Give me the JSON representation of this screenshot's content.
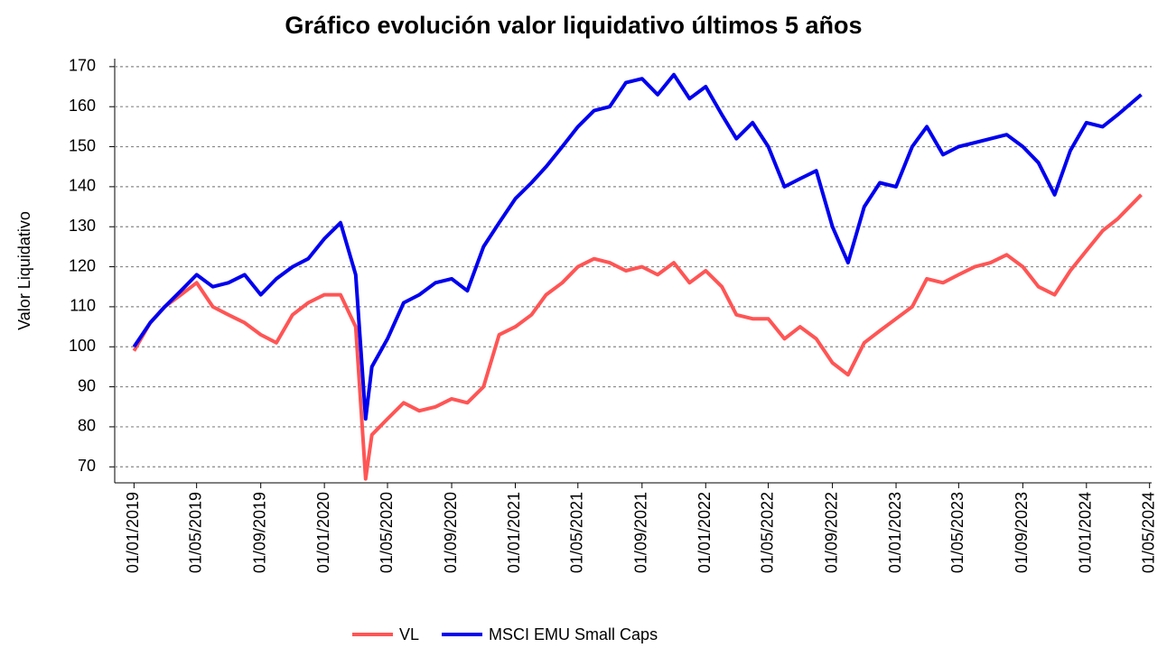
{
  "chart_data": {
    "type": "line",
    "title": "Gráfico evolución valor liquidativo últimos 5 años",
    "y_label": "Valor Liquidativo",
    "x": [
      "01/01/2019",
      "01/02/2019",
      "01/03/2019",
      "01/04/2019",
      "01/05/2019",
      "01/06/2019",
      "01/07/2019",
      "01/08/2019",
      "01/09/2019",
      "01/10/2019",
      "01/11/2019",
      "01/12/2019",
      "01/01/2020",
      "01/02/2020",
      "01/03/2020",
      "20/03/2020",
      "01/04/2020",
      "01/05/2020",
      "01/06/2020",
      "01/07/2020",
      "01/08/2020",
      "01/09/2020",
      "01/10/2020",
      "01/11/2020",
      "01/12/2020",
      "01/01/2021",
      "01/02/2021",
      "01/03/2021",
      "01/04/2021",
      "01/05/2021",
      "01/06/2021",
      "01/07/2021",
      "01/08/2021",
      "01/09/2021",
      "01/10/2021",
      "01/11/2021",
      "01/12/2021",
      "01/01/2022",
      "01/02/2022",
      "01/03/2022",
      "01/04/2022",
      "01/05/2022",
      "01/06/2022",
      "01/07/2022",
      "01/08/2022",
      "01/09/2022",
      "01/10/2022",
      "01/11/2022",
      "01/12/2022",
      "01/01/2023",
      "01/02/2023",
      "01/03/2023",
      "01/04/2023",
      "01/05/2023",
      "01/06/2023",
      "01/07/2023",
      "01/08/2023",
      "01/09/2023",
      "01/10/2023",
      "01/11/2023",
      "01/12/2023",
      "01/01/2024",
      "01/02/2024",
      "01/03/2024",
      "15/04/2024"
    ],
    "series": [
      {
        "name": "VL",
        "color": "#ff5555",
        "values": [
          99,
          106,
          110,
          113,
          116,
          110,
          108,
          106,
          103,
          101,
          108,
          111,
          113,
          113,
          105,
          67,
          78,
          82,
          86,
          84,
          85,
          87,
          86,
          90,
          103,
          105,
          108,
          113,
          116,
          120,
          122,
          121,
          119,
          120,
          118,
          121,
          116,
          119,
          115,
          108,
          107,
          107,
          102,
          105,
          102,
          96,
          93,
          101,
          104,
          107,
          110,
          117,
          116,
          118,
          120,
          121,
          123,
          120,
          115,
          113,
          119,
          124,
          129,
          132,
          138
        ]
      },
      {
        "name": "MSCI EMU Small Caps",
        "color": "#0000ee",
        "values": [
          100,
          106,
          110,
          114,
          118,
          115,
          116,
          118,
          113,
          117,
          120,
          122,
          127,
          131,
          118,
          82,
          95,
          102,
          111,
          113,
          116,
          117,
          114,
          125,
          131,
          137,
          141,
          145,
          150,
          155,
          159,
          160,
          166,
          167,
          163,
          168,
          162,
          165,
          158,
          152,
          156,
          150,
          140,
          142,
          144,
          130,
          121,
          135,
          141,
          140,
          150,
          155,
          148,
          150,
          151,
          152,
          153,
          150,
          146,
          138,
          149,
          156,
          155,
          158,
          163
        ]
      }
    ],
    "xlim": [
      "25/11/2018",
      "05/05/2024"
    ],
    "xticks": [
      "01/01/2019",
      "01/05/2019",
      "01/09/2019",
      "01/01/2020",
      "01/05/2020",
      "01/09/2020",
      "01/01/2021",
      "01/05/2021",
      "01/09/2021",
      "01/01/2022",
      "01/05/2022",
      "01/09/2022",
      "01/01/2023",
      "01/05/2023",
      "01/09/2023",
      "01/01/2024",
      "01/05/2024"
    ],
    "ylim": [
      66,
      172
    ],
    "yticks": [
      70,
      80,
      90,
      100,
      110,
      120,
      130,
      140,
      150,
      160,
      170
    ],
    "grid": true,
    "legend": "bottom"
  }
}
